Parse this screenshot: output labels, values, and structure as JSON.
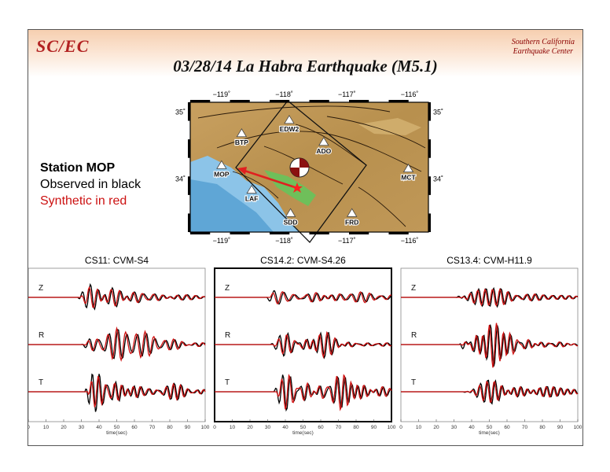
{
  "header": {
    "logo_text": "SC/EC",
    "org_line1": "Southern California",
    "org_line2": "Earthquake Center",
    "title": "03/28/14 La Habra Earthquake (M5.1)"
  },
  "legend": {
    "station": "Station MOP",
    "observed": "Observed in black",
    "synthetic": "Synthetic in red"
  },
  "colors": {
    "observed": "#000000",
    "synthetic": "#d01010",
    "header_band": "#f6cfb0",
    "logo": "#b22222"
  },
  "map": {
    "top_ticks": [
      "−119˚",
      "−118˚",
      "−117˚",
      "−116˚"
    ],
    "bottom_ticks": [
      "−119˚",
      "−118˚",
      "−117˚",
      "−116˚"
    ],
    "left_ticks": [
      "35˚",
      "34˚"
    ],
    "right_ticks": [
      "35˚",
      "34˚"
    ],
    "stations": [
      {
        "name": "EDW2",
        "lon": -117.92,
        "lat": 34.88
      },
      {
        "name": "BTP",
        "lon": -118.68,
        "lat": 34.68
      },
      {
        "name": "ADO",
        "lon": -117.37,
        "lat": 34.55
      },
      {
        "name": "MOP",
        "lon": -119.0,
        "lat": 34.2
      },
      {
        "name": "MCT",
        "lon": -116.02,
        "lat": 34.15
      },
      {
        "name": "LAF",
        "lon": -118.52,
        "lat": 33.83
      },
      {
        "name": "SDD",
        "lon": -117.9,
        "lat": 33.48
      },
      {
        "name": "FRD",
        "lon": -116.92,
        "lat": 33.48
      }
    ]
  },
  "chart_data": [
    {
      "type": "line",
      "title": "CS11: CVM-S4",
      "xlabel": "time(sec)",
      "xlim": [
        0,
        100
      ],
      "xticks": [
        0,
        10,
        20,
        30,
        40,
        50,
        60,
        70,
        80,
        90,
        100
      ],
      "components": [
        "Z",
        "R",
        "T"
      ],
      "series": [
        {
          "name": "Observed in black"
        },
        {
          "name": "Synthetic in red"
        }
      ]
    },
    {
      "type": "line",
      "title": "CS14.2: CVM-S4.26",
      "xlabel": "time(sec)",
      "xlim": [
        0,
        100
      ],
      "xticks": [
        0,
        10,
        20,
        30,
        40,
        50,
        60,
        70,
        80,
        90,
        100
      ],
      "components": [
        "Z",
        "R",
        "T"
      ],
      "series": [
        {
          "name": "Observed in black"
        },
        {
          "name": "Synthetic in red"
        }
      ]
    },
    {
      "type": "line",
      "title": "CS13.4: CVM-H11.9",
      "xlabel": "time(sec)",
      "xlim": [
        0,
        100
      ],
      "xticks": [
        0,
        10,
        20,
        30,
        40,
        50,
        60,
        70,
        80,
        90,
        100
      ],
      "components": [
        "Z",
        "R",
        "T"
      ],
      "series": [
        {
          "name": "Observed in black"
        },
        {
          "name": "Synthetic in red"
        }
      ]
    }
  ]
}
